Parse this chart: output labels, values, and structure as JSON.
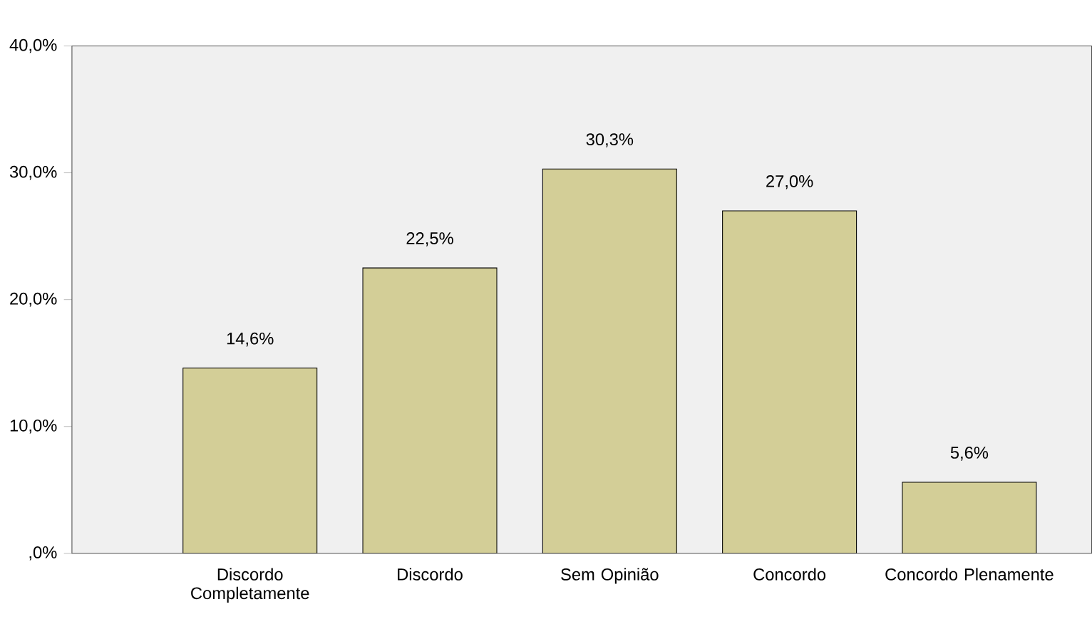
{
  "chart_data": {
    "type": "bar",
    "categories": [
      "Discordo Completamente",
      "Discordo",
      "Sem Opinião",
      "Concordo",
      "Concordo Plenamente"
    ],
    "values": [
      14.6,
      22.5,
      30.3,
      27.0,
      5.6
    ],
    "value_labels": [
      "14,6%",
      "22,5%",
      "30,3%",
      "27,0%",
      "5,6%"
    ],
    "color": "#d3ce97",
    "ylim": [
      0,
      40
    ],
    "yticks": [
      {
        "value": 0,
        "label": ",0%"
      },
      {
        "value": 10,
        "label": "10,0%"
      },
      {
        "value": 20,
        "label": "20,0%"
      },
      {
        "value": 30,
        "label": "30,0%"
      },
      {
        "value": 40,
        "label": "40,0%"
      }
    ],
    "grid": false
  }
}
